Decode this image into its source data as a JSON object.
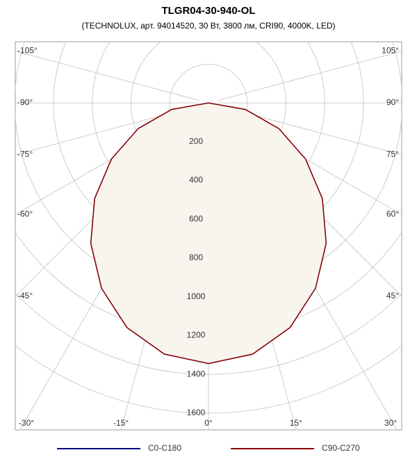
{
  "chart_data": {
    "type": "polar",
    "title": "TLGR04-30-940-OL",
    "subtitle": "(TECHNOLUX, арт. 94014520, 30 Вт, 3800 лм, CRI90, 4000K, LED)",
    "angles": [
      -90,
      -80,
      -70,
      -60,
      -50,
      -40,
      -30,
      -20,
      -10,
      0,
      10,
      20,
      30,
      40,
      50,
      60,
      70,
      80,
      90
    ],
    "series": [
      {
        "name": "C0-C180",
        "color": "#000080",
        "values": [
          0,
          193,
          386,
          578,
          767,
          945,
          1104,
          1232,
          1315,
          1344,
          1315,
          1232,
          1104,
          945,
          767,
          578,
          386,
          193,
          0
        ]
      },
      {
        "name": "C90-C270",
        "color": "#8b0000",
        "values": [
          0,
          193,
          386,
          578,
          767,
          945,
          1104,
          1232,
          1315,
          1344,
          1315,
          1232,
          1104,
          945,
          767,
          578,
          386,
          193,
          0
        ]
      }
    ],
    "rlim": [
      0,
      1600
    ],
    "rticks": [
      200,
      400,
      600,
      800,
      1000,
      1200,
      1400,
      1600
    ],
    "angleticks": [
      {
        "value": -105,
        "label": "-105°"
      },
      {
        "value": -90,
        "label": "-90°"
      },
      {
        "value": -75,
        "label": "-75°"
      },
      {
        "value": -60,
        "label": "-60°"
      },
      {
        "value": -45,
        "label": "-45°"
      },
      {
        "value": -30,
        "label": "-30°"
      },
      {
        "value": -15,
        "label": "-15°"
      },
      {
        "value": 0,
        "label": "0°"
      },
      {
        "value": 15,
        "label": "15°"
      },
      {
        "value": 30,
        "label": "30°"
      },
      {
        "value": 45,
        "label": "45°"
      },
      {
        "value": 60,
        "label": "60°"
      },
      {
        "value": 75,
        "label": "75°"
      },
      {
        "value": 90,
        "label": "90°"
      },
      {
        "value": 105,
        "label": "105°"
      }
    ],
    "fill": "#f8f4ee",
    "grid": true
  }
}
